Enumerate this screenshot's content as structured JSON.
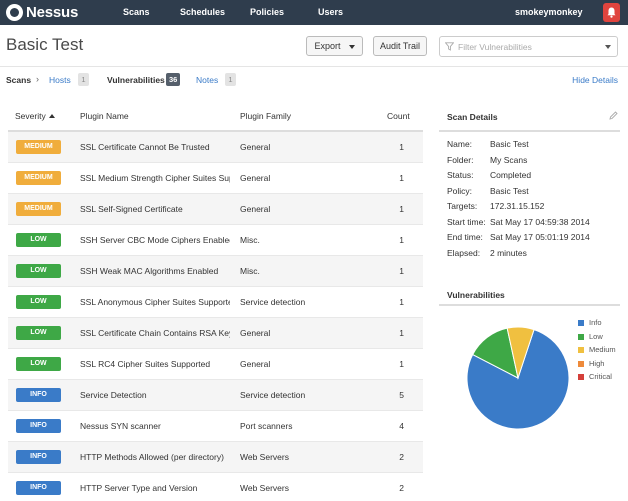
{
  "nav": {
    "brand": "Nessus",
    "links": [
      "Scans",
      "Schedules",
      "Policies",
      "Users"
    ],
    "user": "smokeymonkey",
    "colors": {
      "bar": "#2f3d4d",
      "alert": "#e0443e"
    }
  },
  "header": {
    "title": "Basic Test",
    "export_label": "Export",
    "audit_label": "Audit Trail",
    "filter_placeholder": "Filter Vulnerabilities"
  },
  "tabs": {
    "root": "Scans",
    "sep": "›",
    "hosts": {
      "label": "Hosts",
      "count": "1"
    },
    "vulnerabilities": {
      "label": "Vulnerabilities",
      "count": "36"
    },
    "notes": {
      "label": "Notes",
      "count": "1"
    },
    "hide_details": "Hide Details"
  },
  "table": {
    "columns": {
      "severity": "Severity",
      "plugin": "Plugin Name",
      "family": "Plugin Family",
      "count": "Count"
    },
    "severity_colors": {
      "MEDIUM": "#f0ad3c",
      "LOW": "#3ea846",
      "INFO": "#3a7bc8"
    },
    "rows": [
      {
        "severity": "MEDIUM",
        "plugin": "SSL Certificate Cannot Be Trusted",
        "family": "General",
        "count": "1"
      },
      {
        "severity": "MEDIUM",
        "plugin": "SSL Medium Strength Cipher Suites Sup...",
        "family": "General",
        "count": "1"
      },
      {
        "severity": "MEDIUM",
        "plugin": "SSL Self-Signed Certificate",
        "family": "General",
        "count": "1"
      },
      {
        "severity": "LOW",
        "plugin": "SSH Server CBC Mode Ciphers Enabled",
        "family": "Misc.",
        "count": "1"
      },
      {
        "severity": "LOW",
        "plugin": "SSH Weak MAC Algorithms Enabled",
        "family": "Misc.",
        "count": "1"
      },
      {
        "severity": "LOW",
        "plugin": "SSL Anonymous Cipher Suites Supported",
        "family": "Service detection",
        "count": "1"
      },
      {
        "severity": "LOW",
        "plugin": "SSL Certificate Chain Contains RSA Key...",
        "family": "General",
        "count": "1"
      },
      {
        "severity": "LOW",
        "plugin": "SSL RC4 Cipher Suites Supported",
        "family": "General",
        "count": "1"
      },
      {
        "severity": "INFO",
        "plugin": "Service Detection",
        "family": "Service detection",
        "count": "5"
      },
      {
        "severity": "INFO",
        "plugin": "Nessus SYN scanner",
        "family": "Port scanners",
        "count": "4"
      },
      {
        "severity": "INFO",
        "plugin": "HTTP Methods Allowed (per directory)",
        "family": "Web Servers",
        "count": "2"
      },
      {
        "severity": "INFO",
        "plugin": "HTTP Server Type and Version",
        "family": "Web Servers",
        "count": "2"
      }
    ]
  },
  "details": {
    "title": "Scan Details",
    "fields": [
      {
        "k": "Name:",
        "v": "Basic Test"
      },
      {
        "k": "Folder:",
        "v": "My Scans"
      },
      {
        "k": "Status:",
        "v": "Completed"
      },
      {
        "k": "Policy:",
        "v": "Basic Test"
      },
      {
        "k": "Targets:",
        "v": "172.31.15.152"
      },
      {
        "k": "Start time:",
        "v": "Sat May 17 04:59:38 2014"
      },
      {
        "k": "End time:",
        "v": "Sat May 17 05:01:19 2014"
      },
      {
        "k": "Elapsed:",
        "v": "2 minutes"
      }
    ]
  },
  "vulnerabilities": {
    "title": "Vulnerabilities",
    "legend": [
      {
        "label": "Info",
        "color": "#3a7bc8",
        "share": 0.775
      },
      {
        "label": "Low",
        "color": "#3ea846",
        "share": 0.14
      },
      {
        "label": "Medium",
        "color": "#f0c040",
        "share": 0.085
      },
      {
        "label": "High",
        "color": "#ee8a3a",
        "share": 0
      },
      {
        "label": "Critical",
        "color": "#d43f3a",
        "share": 0
      }
    ]
  }
}
